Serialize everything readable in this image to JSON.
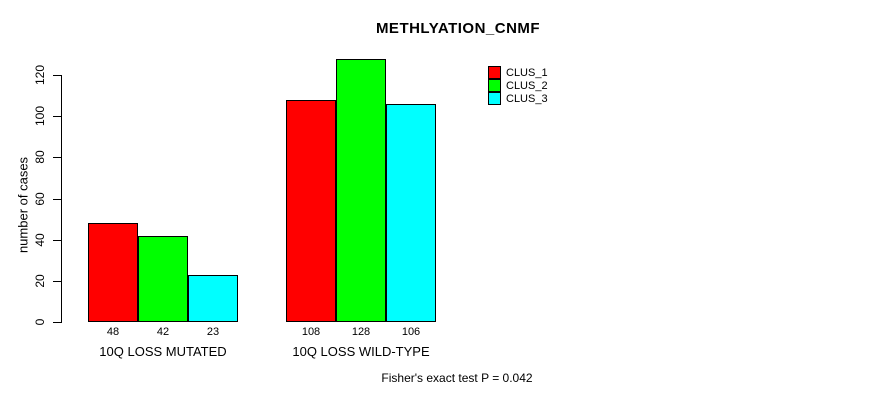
{
  "title": "METHLYATION_CNMF",
  "footnote": "Fisher's exact test P = 0.042",
  "chart_data": {
    "type": "bar",
    "title": "METHLYATION_CNMF",
    "categories": [
      "10Q LOSS MUTATED",
      "10Q LOSS WILD-TYPE"
    ],
    "series": [
      {
        "name": "CLUS_1",
        "color": "#FF0000",
        "values": [
          48,
          108
        ]
      },
      {
        "name": "CLUS_2",
        "color": "#00FF00",
        "values": [
          42,
          128
        ]
      },
      {
        "name": "CLUS_3",
        "color": "#00FFFF",
        "values": [
          23,
          106
        ]
      }
    ],
    "xlabel": "",
    "ylabel": "number of cases",
    "ylim": [
      0,
      130
    ],
    "yticks": [
      0,
      20,
      40,
      60,
      80,
      100,
      120
    ],
    "grid": false,
    "legend_position": "top-right",
    "bar_value_labels": true,
    "annotation": "Fisher's exact test P = 0.042"
  }
}
